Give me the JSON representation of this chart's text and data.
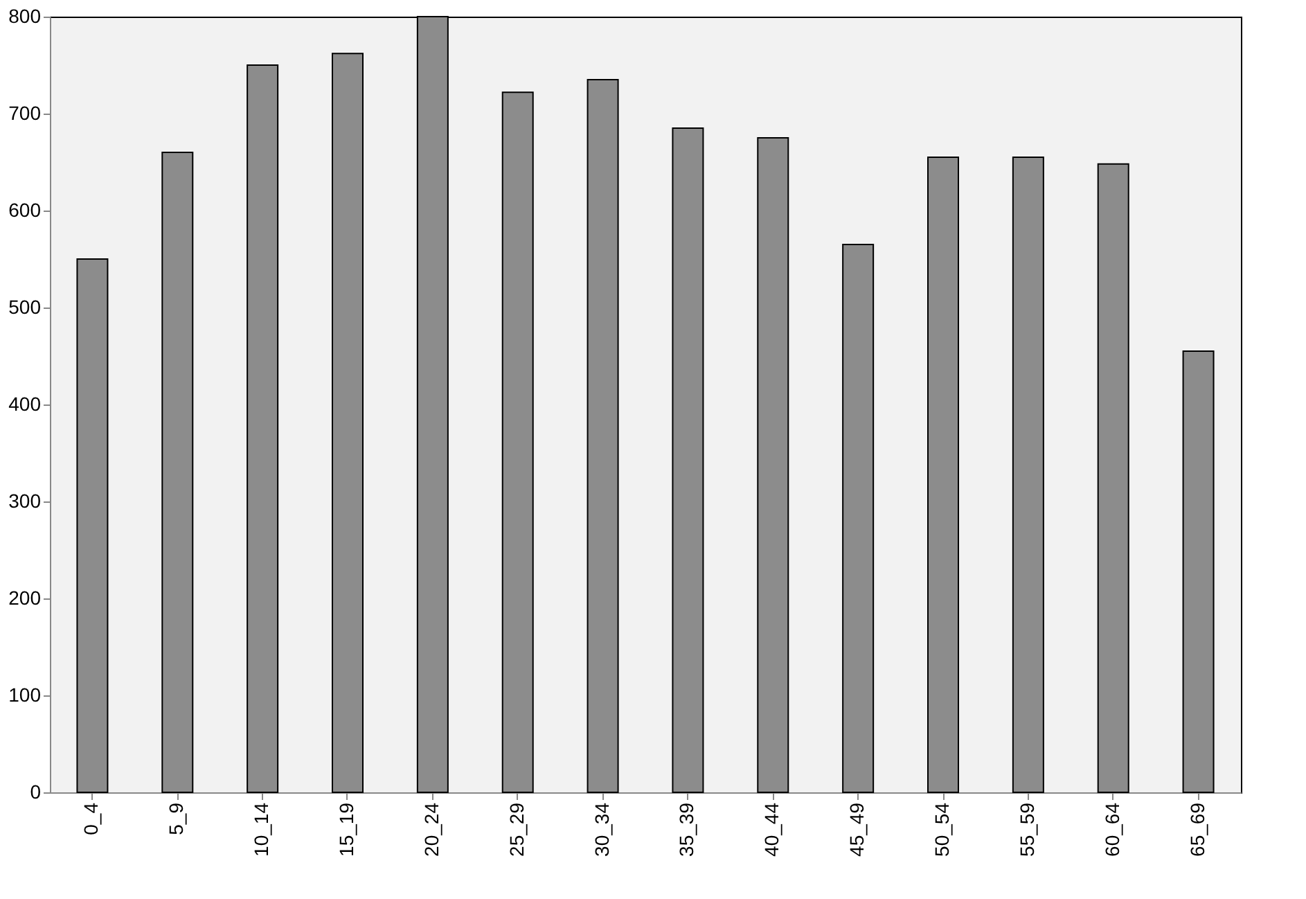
{
  "chart_data": {
    "type": "bar",
    "categories": [
      "0_4",
      "5_9",
      "10_14",
      "15_19",
      "20_24",
      "25_29",
      "30_34",
      "35_39",
      "40_44",
      "45_49",
      "50_54",
      "55_59",
      "60_64",
      "65_69"
    ],
    "values": [
      550,
      660,
      750,
      762,
      800,
      722,
      735,
      685,
      675,
      565,
      655,
      655,
      648,
      455
    ],
    "color": "#8c8c8c",
    "ylim": [
      0,
      800
    ],
    "yticks": [
      0,
      100,
      200,
      300,
      400,
      500,
      600,
      700,
      800
    ],
    "grid": false
  }
}
